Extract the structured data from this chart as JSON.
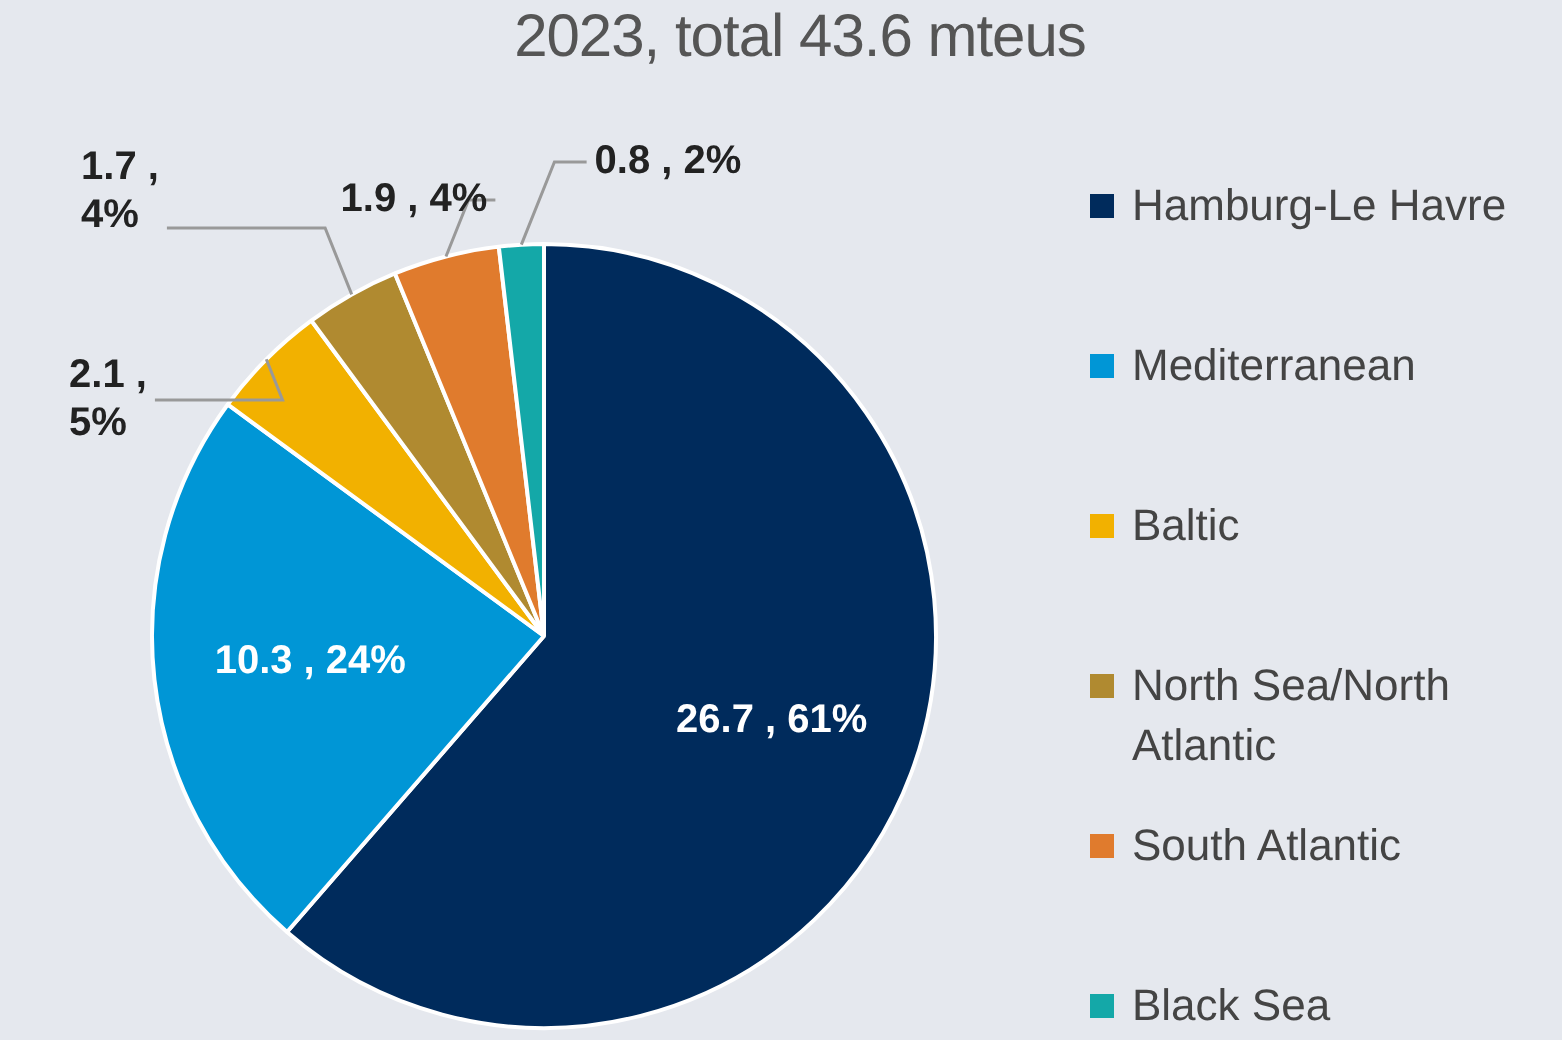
{
  "chart_data": {
    "type": "pie",
    "title": "2023, total 43.6 mteus",
    "categories": [
      "Hamburg-Le Havre",
      "Mediterranean",
      "Baltic",
      "North Sea/North Atlantic",
      "South Atlantic",
      "Black Sea"
    ],
    "values": [
      26.7,
      10.3,
      2.1,
      1.7,
      1.9,
      0.8
    ],
    "colors": [
      "#002b5c",
      "#0096d6",
      "#f2b100",
      "#b08a30",
      "#e07b2d",
      "#14a8a8"
    ],
    "value_labels": [
      "26.7 , 61%",
      "10.3 , 24%",
      "2.1 , 5%",
      "1.7 , 4%",
      "1.9 , 4%",
      "0.8 , 2%"
    ],
    "legend": "right"
  }
}
